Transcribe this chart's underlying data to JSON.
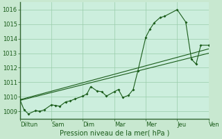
{
  "xlabel": "Pression niveau de la mer( hPa )",
  "bg_color": "#c8e8d0",
  "plot_bg_color": "#cceedd",
  "grid_color": "#99ccaa",
  "line_color": "#1a5c1a",
  "spine_color": "#336633",
  "xlim": [
    0,
    6
  ],
  "ylim": [
    1008.5,
    1016.5
  ],
  "yticks": [
    1009,
    1010,
    1011,
    1012,
    1013,
    1014,
    1015,
    1016
  ],
  "xtick_labels": [
    "Diltun",
    "Sam",
    "Dim",
    "Mar",
    "Mer",
    "Jeu",
    "Ven"
  ],
  "xtick_positions": [
    0,
    1,
    2,
    3,
    4,
    5,
    6
  ],
  "series1": [
    [
      0.0,
      1009.8
    ],
    [
      0.13,
      1009.1
    ],
    [
      0.27,
      1008.82
    ],
    [
      0.5,
      1009.05
    ],
    [
      0.63,
      1009.0
    ],
    [
      0.77,
      1009.1
    ],
    [
      1.0,
      1009.45
    ],
    [
      1.13,
      1009.4
    ],
    [
      1.27,
      1009.35
    ],
    [
      1.45,
      1009.65
    ],
    [
      1.6,
      1009.72
    ],
    [
      1.75,
      1009.85
    ],
    [
      2.0,
      1010.05
    ],
    [
      2.13,
      1010.2
    ],
    [
      2.25,
      1010.7
    ],
    [
      2.45,
      1010.4
    ],
    [
      2.6,
      1010.35
    ],
    [
      2.75,
      1010.05
    ],
    [
      3.0,
      1010.35
    ],
    [
      3.13,
      1010.5
    ],
    [
      3.27,
      1009.95
    ],
    [
      3.45,
      1010.1
    ],
    [
      3.6,
      1010.5
    ],
    [
      3.75,
      1011.8
    ],
    [
      4.0,
      1014.1
    ],
    [
      4.13,
      1014.65
    ],
    [
      4.27,
      1015.1
    ],
    [
      4.45,
      1015.45
    ],
    [
      4.6,
      1015.55
    ],
    [
      5.0,
      1016.0
    ],
    [
      5.27,
      1015.15
    ],
    [
      5.45,
      1012.6
    ],
    [
      5.6,
      1012.25
    ],
    [
      5.75,
      1013.55
    ],
    [
      6.0,
      1013.55
    ]
  ],
  "series2_straight": [
    [
      0.0,
      1009.8
    ],
    [
      6.0,
      1013.3
    ]
  ],
  "series3_straight": [
    [
      0.0,
      1009.75
    ],
    [
      6.0,
      1013.0
    ]
  ]
}
